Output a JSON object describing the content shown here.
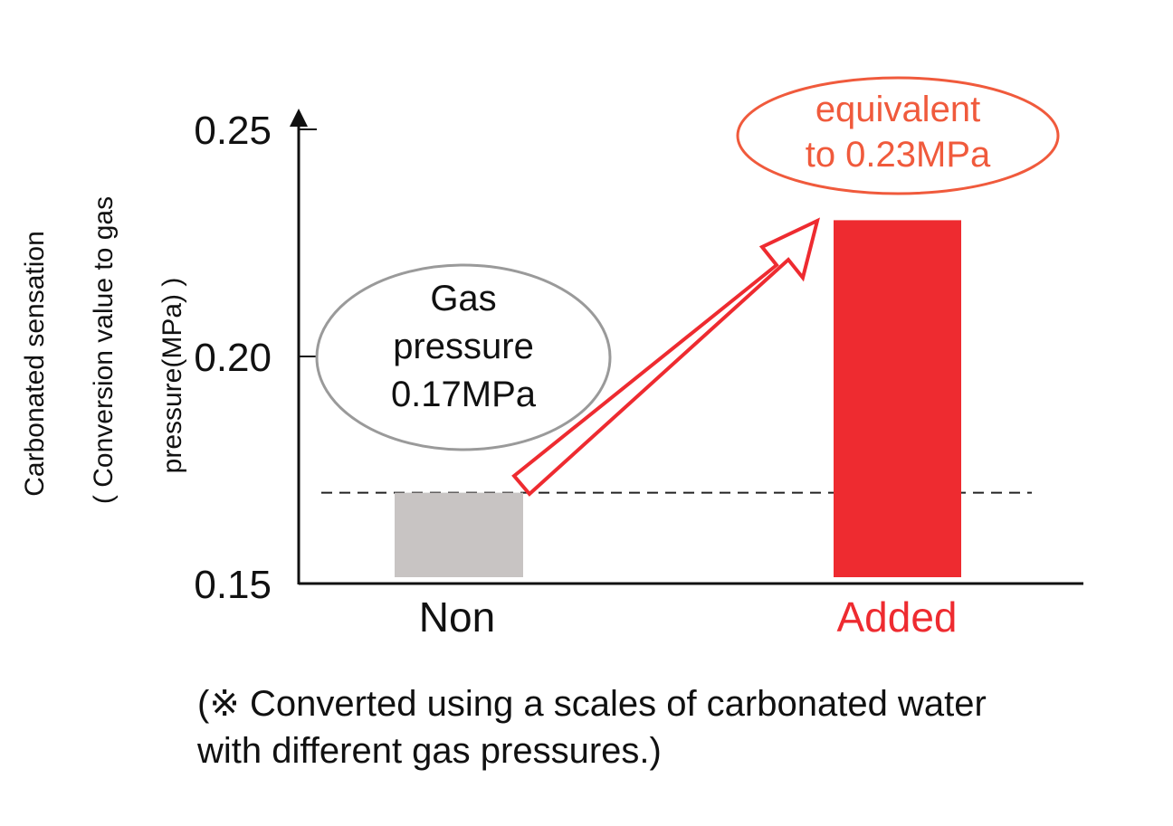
{
  "chart_data": {
    "type": "bar",
    "categories": [
      "Non",
      "Added"
    ],
    "values": [
      0.17,
      0.23
    ],
    "ylim": [
      0.15,
      0.25
    ],
    "yticks": [
      "0.15",
      "0.20",
      "0.25"
    ],
    "ytick_values": [
      0.15,
      0.2,
      0.25
    ],
    "ylabel_lines": [
      "Carbonated sensation",
      "( Conversion value to gas",
      "pressure(MPa) )"
    ],
    "xlabel": "",
    "grid": false,
    "reference_line": 0.17,
    "annotations": {
      "non": [
        "Gas",
        "pressure",
        "0.17MPa"
      ],
      "added": [
        "equivalent",
        "to 0.23MPa"
      ]
    },
    "colors": {
      "non": "#c8c4c3",
      "added": "#ee2b30",
      "added_text": "#f05a3c",
      "axis": "#111111",
      "bubble_gray": "#9a9a9a"
    }
  },
  "footnote_lines": [
    "(※ Converted using a scales of carbonated water",
    "with different gas pressures.)"
  ]
}
